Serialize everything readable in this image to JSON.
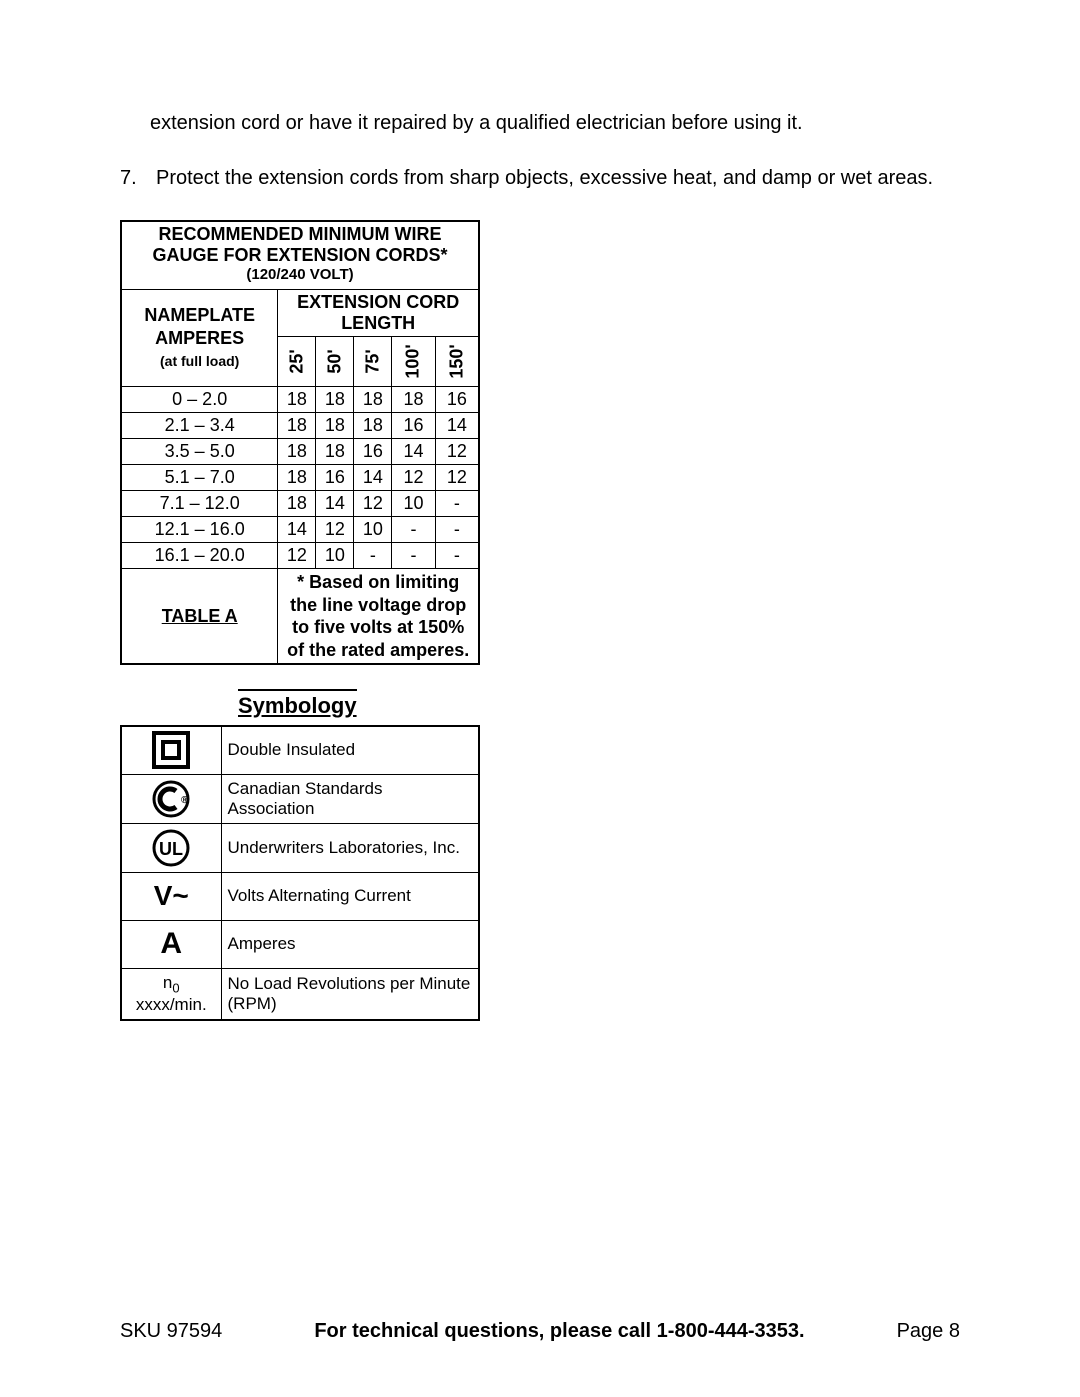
{
  "intro_text": "extension cord or have it repaired by a qualified electrician before using it.",
  "list": {
    "num": "7.",
    "text": "Protect the extension cords from sharp objects, excessive heat, and damp or wet areas."
  },
  "wire_table": {
    "title": "RECOMMENDED MINIMUM WIRE GAUGE FOR EXTENSION CORDS*",
    "subtitle": "(120/240 VOLT)",
    "left_header_line1": "NAMEPLATE",
    "left_header_line2": "AMPERES",
    "left_header_sub": "(at full load)",
    "right_header": "EXTENSION CORD LENGTH",
    "lengths": [
      "25'",
      "50'",
      "75'",
      "100'",
      "150'"
    ],
    "rows": [
      {
        "range": "0 – 2.0",
        "vals": [
          "18",
          "18",
          "18",
          "18",
          "16"
        ]
      },
      {
        "range": "2.1 – 3.4",
        "vals": [
          "18",
          "18",
          "18",
          "16",
          "14"
        ]
      },
      {
        "range": "3.5 – 5.0",
        "vals": [
          "18",
          "18",
          "16",
          "14",
          "12"
        ]
      },
      {
        "range": "5.1 – 7.0",
        "vals": [
          "18",
          "16",
          "14",
          "12",
          "12"
        ]
      },
      {
        "range": "7.1 – 12.0",
        "vals": [
          "18",
          "14",
          "12",
          "10",
          "-"
        ]
      },
      {
        "range": "12.1 – 16.0",
        "vals": [
          "14",
          "12",
          "10",
          "-",
          "-"
        ]
      },
      {
        "range": "16.1 – 20.0",
        "vals": [
          "12",
          "10",
          "-",
          "-",
          "-"
        ]
      }
    ],
    "footer_label": "TABLE A",
    "footer_note": "* Based on limiting the line voltage drop to five volts at 150% of the rated amperes."
  },
  "symbology": {
    "heading": "Symbology",
    "rows": [
      {
        "icon": "double-insulated",
        "label": "Double Insulated"
      },
      {
        "icon": "csa",
        "label": "Canadian Standards Association"
      },
      {
        "icon": "ul",
        "label": "Underwriters Laboratories, Inc."
      },
      {
        "icon": "vac",
        "label": "Volts Alternating Current"
      },
      {
        "icon": "amperes",
        "label": "Amperes"
      },
      {
        "icon": "rpm",
        "label": "No Load Revolutions per Minute (RPM)"
      }
    ],
    "vac_text": "V~",
    "amp_text": "A",
    "rpm_text_pre": "n",
    "rpm_text_sub": "0",
    "rpm_text_post": " xxxx/min."
  },
  "footer": {
    "sku": "SKU 97594",
    "center": "For technical questions, please call 1-800-444-3353.",
    "page": "Page 8"
  }
}
